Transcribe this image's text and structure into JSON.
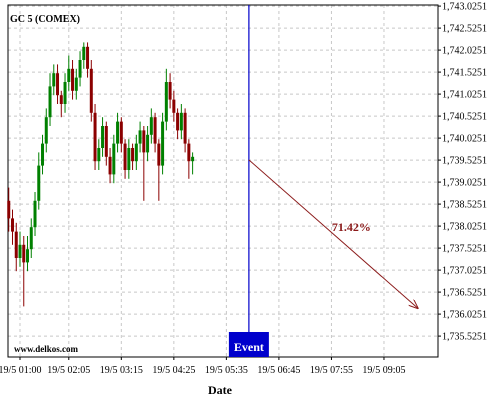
{
  "chart_data": {
    "type": "candlestick",
    "title": "GC 5 (COMEX)",
    "watermark": "www.delkos.com",
    "x_label": "Date",
    "colors": {
      "up": "#008000",
      "down": "#8b0000",
      "event": "#0000cc",
      "projection": "#8b1a1a"
    },
    "grid": true,
    "xlim": [
      "19/5 00:44",
      "19/5 10:17"
    ],
    "xticks": [
      "19/5 01:00",
      "19/5 02:05",
      "19/5 03:15",
      "19/5 04:25",
      "19/5 05:35",
      "19/5 06:45",
      "19/5 07:55",
      "19/5 09:05"
    ],
    "ylim": [
      1735.05,
      1743.05
    ],
    "yticks": [
      {
        "value": 1743.0251,
        "label": "1,743.0251"
      },
      {
        "value": 1742.5251,
        "label": "1,742.5251"
      },
      {
        "value": 1742.0251,
        "label": "1,742.0251"
      },
      {
        "value": 1741.5251,
        "label": "1,741.5251"
      },
      {
        "value": 1741.0251,
        "label": "1,741.0251"
      },
      {
        "value": 1740.5251,
        "label": "1,740.5251"
      },
      {
        "value": 1740.0251,
        "label": "1,740.0251"
      },
      {
        "value": 1739.5251,
        "label": "1,739.5251"
      },
      {
        "value": 1739.0251,
        "label": "1,739.0251"
      },
      {
        "value": 1738.5251,
        "label": "1,738.5251"
      },
      {
        "value": 1738.0251,
        "label": "1,738.0251"
      },
      {
        "value": 1737.5251,
        "label": "1,737.5251"
      },
      {
        "value": 1737.0251,
        "label": "1,737.0251"
      },
      {
        "value": 1736.5251,
        "label": "1,736.5251"
      },
      {
        "value": 1736.0251,
        "label": "1,736.0251"
      },
      {
        "value": 1735.5251,
        "label": "1,735.5251"
      }
    ],
    "x": [
      "19/5 00:45",
      "19/5 00:50",
      "19/5 00:55",
      "19/5 01:00",
      "19/5 01:05",
      "19/5 01:10",
      "19/5 01:15",
      "19/5 01:20",
      "19/5 01:25",
      "19/5 01:30",
      "19/5 01:35",
      "19/5 01:40",
      "19/5 01:45",
      "19/5 01:50",
      "19/5 01:55",
      "19/5 02:00",
      "19/5 02:05",
      "19/5 02:10",
      "19/5 02:15",
      "19/5 02:20",
      "19/5 02:25",
      "19/5 02:30",
      "19/5 02:35",
      "19/5 02:40",
      "19/5 02:45",
      "19/5 02:50",
      "19/5 02:55",
      "19/5 03:00",
      "19/5 03:05",
      "19/5 03:10",
      "19/5 03:15",
      "19/5 03:20",
      "19/5 03:25",
      "19/5 03:30",
      "19/5 03:35",
      "19/5 03:40",
      "19/5 03:45",
      "19/5 03:50",
      "19/5 03:55",
      "19/5 04:00",
      "19/5 04:05",
      "19/5 04:10",
      "19/5 04:15",
      "19/5 04:20",
      "19/5 04:25",
      "19/5 04:30",
      "19/5 04:35",
      "19/5 04:40",
      "19/5 04:45",
      "19/5 04:50"
    ],
    "open": [
      1738.6,
      1738.2,
      1737.9,
      1737.3,
      1737.6,
      1737.2,
      1737.5,
      1738.0,
      1738.6,
      1739.4,
      1739.9,
      1740.5,
      1741.2,
      1741.5,
      1741.0,
      1740.8,
      1741.3,
      1741.6,
      1741.1,
      1741.4,
      1741.8,
      1742.1,
      1741.6,
      1740.6,
      1739.5,
      1739.8,
      1740.3,
      1739.6,
      1739.2,
      1739.9,
      1740.4,
      1739.9,
      1739.3,
      1739.8,
      1739.5,
      1739.9,
      1740.2,
      1739.7,
      1740.1,
      1740.5,
      1739.9,
      1739.4,
      1740.4,
      1741.3,
      1740.9,
      1740.6,
      1740.2,
      1740.6,
      1739.9,
      1739.5
    ],
    "high": [
      1738.9,
      1738.4,
      1738.1,
      1737.9,
      1737.8,
      1737.8,
      1738.2,
      1738.8,
      1739.7,
      1740.1,
      1740.7,
      1741.5,
      1741.7,
      1741.7,
      1741.1,
      1741.5,
      1741.9,
      1741.8,
      1741.6,
      1742.0,
      1742.2,
      1742.2,
      1741.8,
      1740.8,
      1740.0,
      1740.5,
      1740.4,
      1739.8,
      1740.1,
      1740.6,
      1740.5,
      1740.0,
      1740.0,
      1739.9,
      1740.1,
      1740.4,
      1740.3,
      1740.3,
      1740.7,
      1740.6,
      1740.0,
      1740.6,
      1741.6,
      1741.5,
      1741.1,
      1740.7,
      1740.8,
      1740.7,
      1740.0,
      1739.7
    ],
    "low": [
      1737.9,
      1737.6,
      1737.0,
      1737.1,
      1736.2,
      1737.0,
      1737.3,
      1737.8,
      1738.4,
      1739.2,
      1739.7,
      1740.3,
      1741.0,
      1740.8,
      1740.5,
      1740.6,
      1741.1,
      1740.9,
      1740.9,
      1741.2,
      1741.6,
      1741.4,
      1740.4,
      1739.3,
      1739.3,
      1739.6,
      1739.4,
      1739.0,
      1739.0,
      1739.7,
      1739.7,
      1739.1,
      1739.1,
      1739.3,
      1739.3,
      1739.7,
      1738.6,
      1739.5,
      1739.9,
      1739.7,
      1738.6,
      1739.2,
      1740.2,
      1740.7,
      1740.4,
      1740.0,
      1740.0,
      1739.7,
      1739.1,
      1739.2
    ],
    "close": [
      1738.2,
      1737.9,
      1737.3,
      1737.6,
      1737.2,
      1737.5,
      1738.0,
      1738.6,
      1739.4,
      1739.9,
      1740.5,
      1741.2,
      1741.5,
      1741.0,
      1740.8,
      1741.3,
      1741.6,
      1741.1,
      1741.4,
      1741.8,
      1742.1,
      1741.6,
      1740.6,
      1739.5,
      1739.8,
      1740.3,
      1739.6,
      1739.2,
      1739.9,
      1740.4,
      1739.9,
      1739.3,
      1739.8,
      1739.5,
      1739.9,
      1740.2,
      1739.7,
      1740.1,
      1740.5,
      1739.9,
      1739.4,
      1740.4,
      1741.3,
      1740.9,
      1740.6,
      1740.2,
      1740.6,
      1739.9,
      1739.5,
      1739.6
    ],
    "event": {
      "label": "Event",
      "time": "19/5 06:05"
    },
    "projection": {
      "label": "71.42%",
      "start_time": "19/5 06:05",
      "start_price": 1739.53,
      "end_time": "19/5 09:50",
      "end_price": 1736.16
    }
  }
}
